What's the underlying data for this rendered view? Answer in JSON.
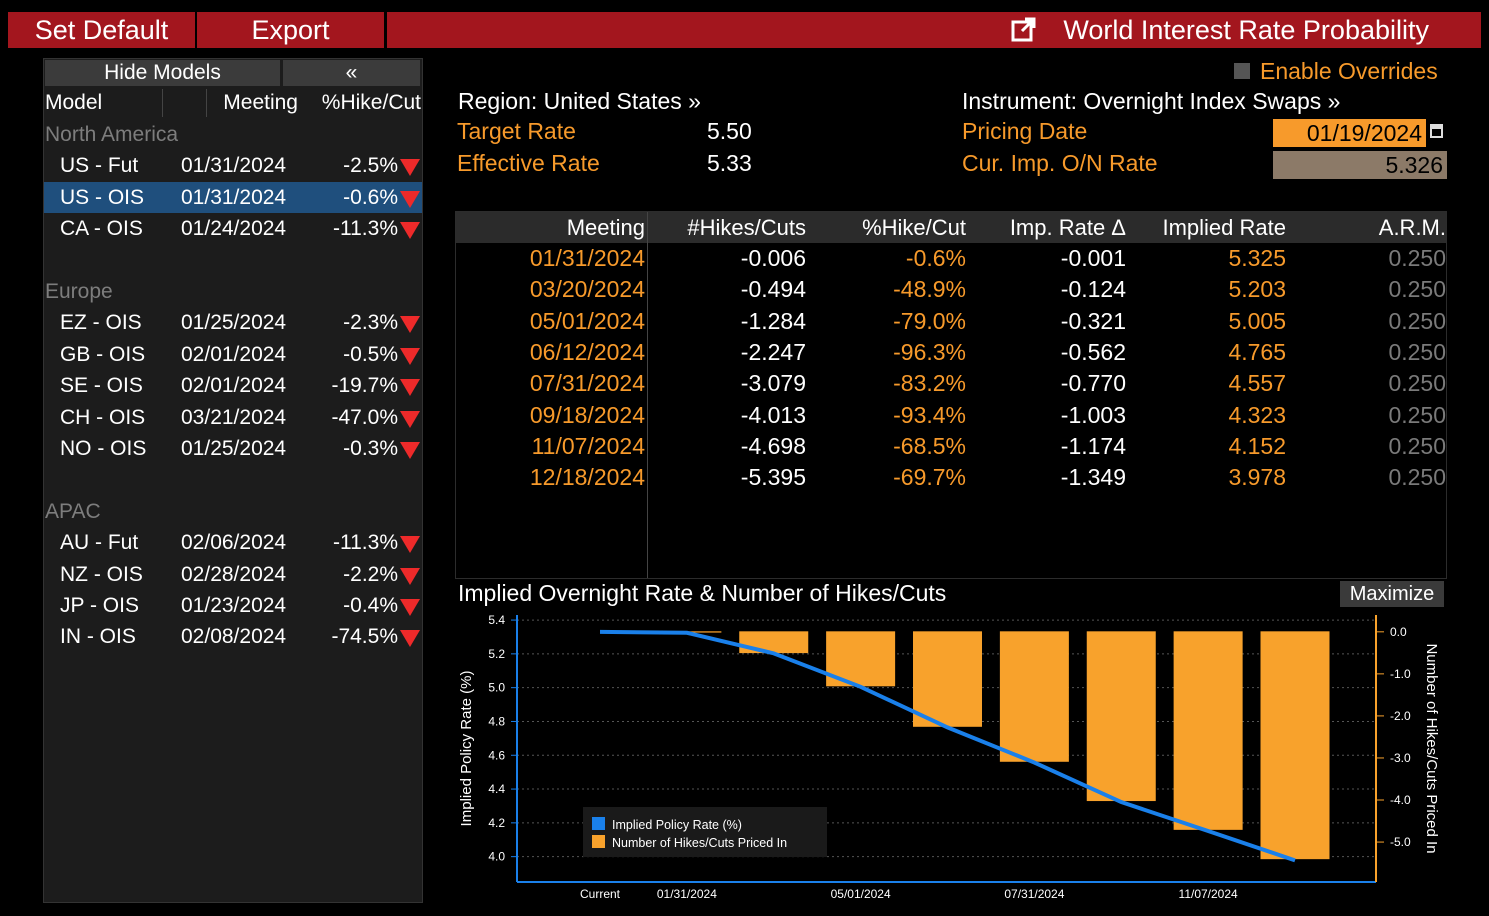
{
  "toolbar": {
    "buttons": [
      "Set Default",
      "Export"
    ],
    "title": "World Interest Rate Probability"
  },
  "sidebar": {
    "hide_models": "Hide Models",
    "collapse": "«",
    "columns": [
      "Model",
      "Meeting",
      "%Hike/Cut"
    ],
    "selected": {
      "group": 0,
      "row": 1
    },
    "groups": [
      {
        "name": "North America",
        "rows": [
          [
            "US - Fut",
            "01/31/2024",
            "-2.5%"
          ],
          [
            "US - OIS",
            "01/31/2024",
            "-0.6%"
          ],
          [
            "CA - OIS",
            "01/24/2024",
            "-11.3%"
          ]
        ]
      },
      {
        "name": "Europe",
        "rows": [
          [
            "EZ - OIS",
            "01/25/2024",
            "-2.3%"
          ],
          [
            "GB - OIS",
            "02/01/2024",
            "-0.5%"
          ],
          [
            "SE - OIS",
            "02/01/2024",
            "-19.7%"
          ],
          [
            "CH - OIS",
            "03/21/2024",
            "-47.0%"
          ],
          [
            "NO - OIS",
            "01/25/2024",
            "-0.3%"
          ]
        ]
      },
      {
        "name": "APAC",
        "rows": [
          [
            "AU - Fut",
            "02/06/2024",
            "-11.3%"
          ],
          [
            "NZ - OIS",
            "02/28/2024",
            "-2.2%"
          ],
          [
            "JP - OIS",
            "01/23/2024",
            "-0.4%"
          ],
          [
            "IN - OIS",
            "02/08/2024",
            "-74.5%"
          ]
        ]
      }
    ]
  },
  "overrides": "Enable Overrides",
  "info": {
    "region": "Region: United States »",
    "instrument": "Instrument: Overnight Index Swaps »",
    "left": [
      {
        "label": "Target Rate",
        "value": "5.50"
      },
      {
        "label": "Effective Rate",
        "value": "5.33"
      }
    ],
    "right": [
      {
        "label": "Pricing Date",
        "value": "01/19/2024"
      },
      {
        "label": "Cur. Imp. O/N Rate",
        "value": "5.326"
      }
    ]
  },
  "table": {
    "columns": [
      "Meeting",
      "#Hikes/Cuts",
      "%Hike/Cut",
      "Imp. Rate Δ",
      "Implied Rate",
      "A.R.M."
    ],
    "rows": [
      [
        "01/31/2024",
        "-0.006",
        "-0.6%",
        "-0.001",
        "5.325",
        "0.250"
      ],
      [
        "03/20/2024",
        "-0.494",
        "-48.9%",
        "-0.124",
        "5.203",
        "0.250"
      ],
      [
        "05/01/2024",
        "-1.284",
        "-79.0%",
        "-0.321",
        "5.005",
        "0.250"
      ],
      [
        "06/12/2024",
        "-2.247",
        "-96.3%",
        "-0.562",
        "4.765",
        "0.250"
      ],
      [
        "07/31/2024",
        "-3.079",
        "-83.2%",
        "-0.770",
        "4.557",
        "0.250"
      ],
      [
        "09/18/2024",
        "-4.013",
        "-93.4%",
        "-1.003",
        "4.323",
        "0.250"
      ],
      [
        "11/07/2024",
        "-4.698",
        "-68.5%",
        "-1.174",
        "4.152",
        "0.250"
      ],
      [
        "12/18/2024",
        "-5.395",
        "-69.7%",
        "-1.349",
        "3.978",
        "0.250"
      ]
    ]
  },
  "chart_panel": {
    "title": "Implied Overnight Rate & Number of Hikes/Cuts",
    "maximize": "Maximize"
  },
  "chart_data": {
    "type": "combo",
    "categories": [
      "Current",
      "01/31/2024",
      null,
      "05/01/2024",
      null,
      "07/31/2024",
      null,
      "11/07/2024",
      null
    ],
    "series": [
      {
        "name": "Implied Policy Rate (%)",
        "type": "line",
        "color": "#1a80ea",
        "values": [
          5.33,
          5.325,
          5.203,
          5.005,
          4.765,
          4.557,
          4.323,
          4.152,
          3.978
        ]
      },
      {
        "name": "Number of Hikes/Cuts Priced In",
        "type": "bar",
        "axis": "y2",
        "color": "#f8a22c",
        "values": [
          0,
          -0.006,
          -0.494,
          -1.284,
          -2.247,
          -3.079,
          -4.013,
          -4.698,
          -5.395
        ]
      }
    ],
    "y_label": "Implied Policy Rate (%)",
    "y2_label": "Number of Hikes/Cuts Priced In",
    "ylim": [
      3.85,
      5.43
    ],
    "yticks": [
      {
        "value": 4,
        "label": "4.0"
      },
      4.2,
      4.4,
      4.6,
      4.8,
      {
        "value": 5,
        "label": "5.0"
      },
      5.2,
      5.4
    ],
    "y2lim": [
      -5.95,
      0.4
    ],
    "y2ticks": [
      {
        "value": 0,
        "label": "0.0"
      },
      {
        "value": -1,
        "label": "-1.0"
      },
      {
        "value": -2,
        "label": "-2.0"
      },
      {
        "value": -3,
        "label": "-3.0"
      },
      {
        "value": -4,
        "label": "-4.0"
      },
      {
        "value": -5,
        "label": "-5.0"
      }
    ],
    "grid": true
  }
}
